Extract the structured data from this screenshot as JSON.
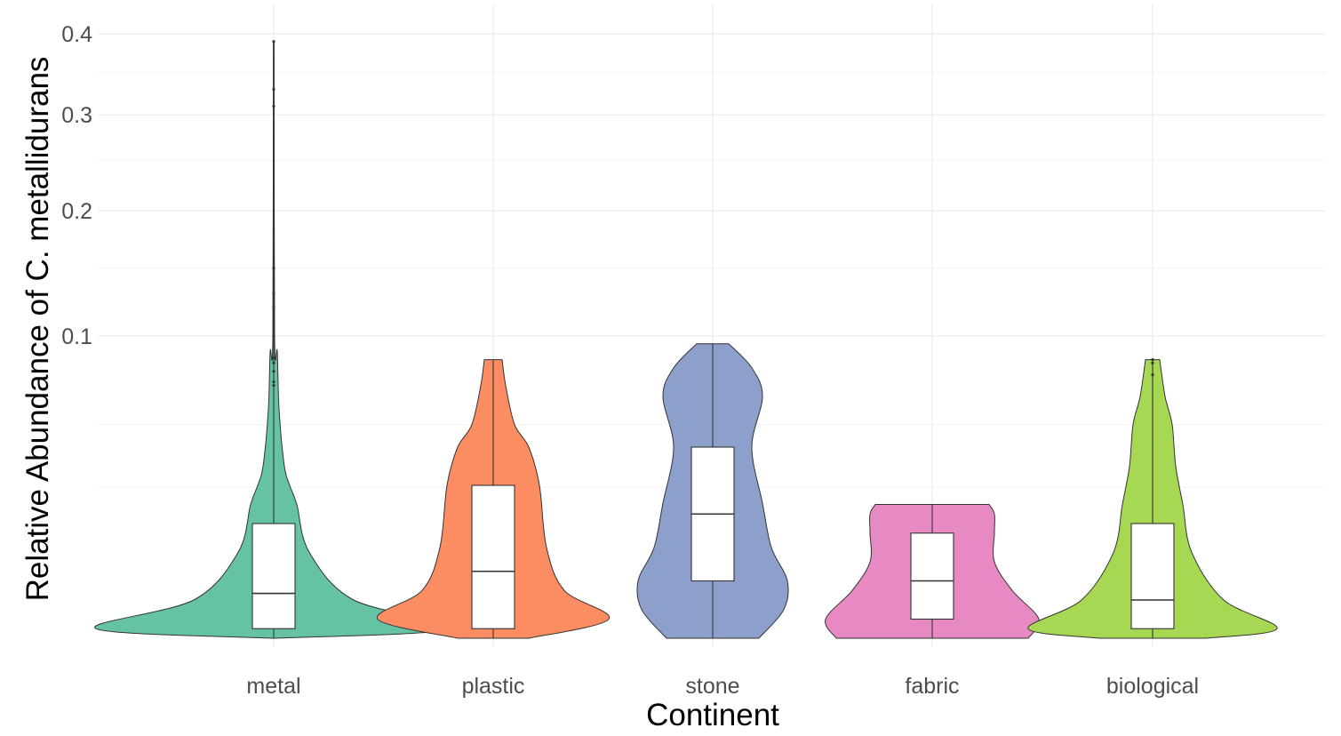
{
  "chart_data": {
    "type": "violin",
    "xlabel": "Continent",
    "ylabel": "Relative Abundance of C. metallidurans",
    "y_scale": "sqrt",
    "ylim": [
      0,
      0.4
    ],
    "y_ticks": [
      {
        "value": 0.1,
        "label": "0.1"
      },
      {
        "value": 0.2,
        "label": "0.2"
      },
      {
        "value": 0.3,
        "label": "0.3"
      },
      {
        "value": 0.4,
        "label": "0.4"
      }
    ],
    "y_minor_ticks": [
      0.025,
      0.05,
      0.15,
      0.25,
      0.35
    ],
    "grid": true,
    "legend": "none",
    "categories": [
      "metal",
      "plastic",
      "stone",
      "fabric",
      "biological"
    ],
    "series": [
      {
        "category": "metal",
        "color": "#66c2a5",
        "min": 0,
        "max": 0.39,
        "box": {
          "q1": 0.0001,
          "median": 0.0022,
          "q3": 0.0144,
          "whisker_low": 0,
          "whisker_high": 0.39
        },
        "outliers": [
          0.07,
          0.072,
          0.078,
          0.083,
          0.086,
          0.1,
          0.12,
          0.13,
          0.15,
          0.31,
          0.33,
          0.39
        ],
        "density": [
          [
            0,
            0.01
          ],
          [
            0.0001,
            1.0
          ],
          [
            0.0016,
            0.45
          ],
          [
            0.0081,
            0.2
          ],
          [
            0.0196,
            0.13
          ],
          [
            0.0256,
            0.09
          ],
          [
            0.0324,
            0.06
          ],
          [
            0.0576,
            0.03
          ],
          [
            0.09,
            0.02
          ],
          [
            0.1,
            0.005
          ],
          [
            0.39,
            0.002
          ]
        ]
      },
      {
        "category": "plastic",
        "color": "#fc8d62",
        "min": 0,
        "max": 0.085,
        "box": {
          "q1": 0.0001,
          "median": 0.0049,
          "q3": 0.0256,
          "whisker_low": 0,
          "whisker_high": 0.085
        },
        "outliers": [],
        "density": [
          [
            0,
            0.2
          ],
          [
            0.0004,
            0.65
          ],
          [
            0.0025,
            0.4
          ],
          [
            0.009,
            0.3
          ],
          [
            0.0256,
            0.26
          ],
          [
            0.04,
            0.2
          ],
          [
            0.05,
            0.12
          ],
          [
            0.07,
            0.07
          ],
          [
            0.085,
            0.05
          ]
        ]
      },
      {
        "category": "stone",
        "color": "#8da0cb",
        "min": 0,
        "max": 0.095,
        "box": {
          "q1": 0.0036,
          "median": 0.0169,
          "q3": 0.04,
          "whisker_low": 0,
          "whisker_high": 0.095
        },
        "outliers": [],
        "density": [
          [
            0,
            0.26
          ],
          [
            0.0009,
            0.4
          ],
          [
            0.0036,
            0.42
          ],
          [
            0.009,
            0.33
          ],
          [
            0.02,
            0.28
          ],
          [
            0.04,
            0.22
          ],
          [
            0.064,
            0.28
          ],
          [
            0.08,
            0.22
          ],
          [
            0.095,
            0.09
          ]
        ]
      },
      {
        "category": "fabric",
        "color": "#e78ac3",
        "min": 0,
        "max": 0.0196,
        "box": {
          "q1": 0.0004,
          "median": 0.0036,
          "q3": 0.0121,
          "whisker_low": 0,
          "whisker_high": 0.0196
        },
        "outliers": [],
        "density": [
          [
            0,
            0.54
          ],
          [
            0.0004,
            0.6
          ],
          [
            0.0025,
            0.45
          ],
          [
            0.0064,
            0.35
          ],
          [
            0.0121,
            0.35
          ],
          [
            0.0169,
            0.35
          ],
          [
            0.0196,
            0.32
          ]
        ]
      },
      {
        "category": "biological",
        "color": "#a6d854",
        "min": 0,
        "max": 0.085,
        "box": {
          "q1": 0.0001,
          "median": 0.0016,
          "q3": 0.0144,
          "whisker_low": 0,
          "whisker_high": 0.085
        },
        "outliers": [
          0.076,
          0.083,
          0.085
        ],
        "density": [
          [
            0,
            0.3
          ],
          [
            0.0001,
            0.7
          ],
          [
            0.0016,
            0.4
          ],
          [
            0.0081,
            0.22
          ],
          [
            0.0196,
            0.17
          ],
          [
            0.0324,
            0.13
          ],
          [
            0.05,
            0.11
          ],
          [
            0.064,
            0.07
          ],
          [
            0.085,
            0.04
          ]
        ]
      }
    ]
  }
}
